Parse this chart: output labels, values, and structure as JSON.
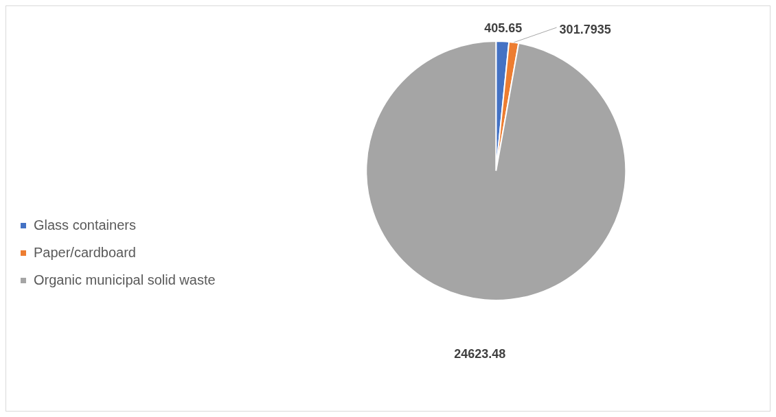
{
  "chart_data": {
    "type": "pie",
    "categories": [
      "Glass containers",
      "Paper/cardboard",
      "Organic municipal solid waste"
    ],
    "values": [
      405.65,
      301.7935,
      24623.48
    ],
    "colors": [
      "#4472c4",
      "#ed7d31",
      "#a5a5a5"
    ],
    "data_labels": true,
    "legend": "bottom left"
  }
}
